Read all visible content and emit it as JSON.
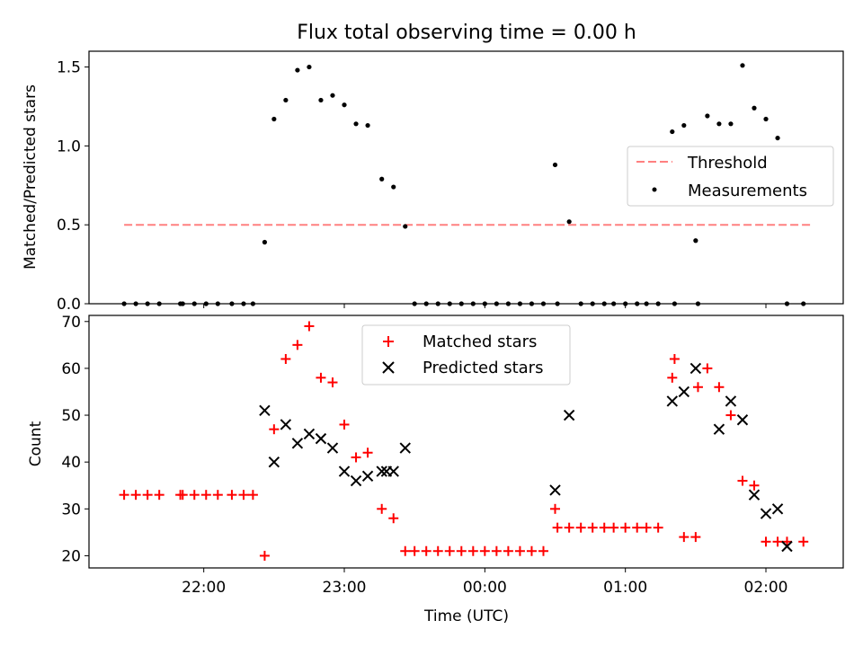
{
  "figure": {
    "title": "Flux total observing time = 0.00 h"
  },
  "chart_data": [
    {
      "type": "scatter",
      "panel": "top",
      "title": "Flux total observing time = 0.00 h",
      "xlabel": "",
      "ylabel": "Matched/Predicted stars",
      "xlim": [
        "21:11",
        "02:33"
      ],
      "ylim": [
        0,
        1.6
      ],
      "yticks": [
        0.0,
        0.5,
        1.0,
        1.5
      ],
      "ytick_labels": [
        "0.0",
        "0.5",
        "1.0",
        "1.5"
      ],
      "legend_position": "center-right",
      "series": [
        {
          "name": "Threshold",
          "kind": "line",
          "style": "dashed",
          "color": "#ff8080",
          "x": [
            "21:26",
            "02:19"
          ],
          "y": [
            0.5,
            0.5
          ]
        },
        {
          "name": "Measurements",
          "kind": "points",
          "color": "#000000",
          "x": [
            "21:26",
            "21:31",
            "21:36",
            "21:41",
            "21:50",
            "21:51",
            "21:56",
            "22:01",
            "22:06",
            "22:12",
            "22:17",
            "22:21",
            "22:26",
            "22:30",
            "22:35",
            "22:40",
            "22:45",
            "22:50",
            "22:55",
            "23:00",
            "23:05",
            "23:10",
            "23:16",
            "23:21",
            "23:26",
            "23:30",
            "23:35",
            "23:40",
            "23:45",
            "23:50",
            "23:55",
            "00:00",
            "00:05",
            "00:10",
            "00:15",
            "00:20",
            "00:25",
            "00:30",
            "00:31",
            "00:36",
            "00:41",
            "00:46",
            "00:51",
            "00:55",
            "01:00",
            "01:05",
            "01:09",
            "01:14",
            "01:20",
            "01:21",
            "01:25",
            "01:30",
            "01:31",
            "01:35",
            "01:40",
            "01:45",
            "01:50",
            "01:55",
            "02:00",
            "02:05",
            "02:09",
            "02:16"
          ],
          "y": [
            0,
            0,
            0,
            0,
            0,
            0,
            0,
            0,
            0,
            0,
            0,
            0,
            0.39,
            1.17,
            1.29,
            1.48,
            1.5,
            1.29,
            1.32,
            1.26,
            1.14,
            1.13,
            0.79,
            0.74,
            0.49,
            0,
            0,
            0,
            0,
            0,
            0,
            0,
            0,
            0,
            0,
            0,
            0,
            0.88,
            0,
            0.52,
            0,
            0,
            0,
            0,
            0,
            0,
            0,
            0,
            1.09,
            0,
            1.13,
            0.4,
            0,
            1.19,
            1.14,
            1.14,
            1.51,
            1.24,
            1.17,
            1.05,
            0,
            0
          ]
        }
      ]
    },
    {
      "type": "scatter",
      "panel": "bottom",
      "xlabel": "Time (UTC)",
      "ylabel": "Count",
      "xlim": [
        "21:11",
        "02:33"
      ],
      "ylim": [
        17.4,
        71.3
      ],
      "xticks": [
        "22:00",
        "23:00",
        "00:00",
        "01:00",
        "02:00"
      ],
      "yticks": [
        20,
        30,
        40,
        50,
        60,
        70
      ],
      "ytick_labels": [
        "20",
        "30",
        "40",
        "50",
        "60",
        "70"
      ],
      "legend_position": "top-center",
      "series": [
        {
          "name": "Matched stars",
          "marker": "plus",
          "color": "#ff0000",
          "x": [
            "21:26",
            "21:31",
            "21:36",
            "21:41",
            "21:50",
            "21:51",
            "21:56",
            "22:01",
            "22:06",
            "22:12",
            "22:17",
            "22:21",
            "22:26",
            "22:30",
            "22:35",
            "22:40",
            "22:45",
            "22:50",
            "22:55",
            "23:00",
            "23:05",
            "23:10",
            "23:16",
            "23:21",
            "23:26",
            "23:30",
            "23:35",
            "23:40",
            "23:45",
            "23:50",
            "23:55",
            "00:00",
            "00:05",
            "00:10",
            "00:15",
            "00:20",
            "00:25",
            "00:30",
            "00:31",
            "00:36",
            "00:41",
            "00:46",
            "00:51",
            "00:55",
            "01:00",
            "01:05",
            "01:09",
            "01:14",
            "01:20",
            "01:21",
            "01:25",
            "01:30",
            "01:31",
            "01:35",
            "01:40",
            "01:45",
            "01:50",
            "01:55",
            "02:00",
            "02:05",
            "02:09",
            "02:16"
          ],
          "y": [
            33,
            33,
            33,
            33,
            33,
            33,
            33,
            33,
            33,
            33,
            33,
            33,
            20,
            47,
            62,
            65,
            69,
            58,
            57,
            48,
            41,
            42,
            30,
            28,
            21,
            21,
            21,
            21,
            21,
            21,
            21,
            21,
            21,
            21,
            21,
            21,
            21,
            30,
            26,
            26,
            26,
            26,
            26,
            26,
            26,
            26,
            26,
            26,
            58,
            62,
            24,
            24,
            56,
            60,
            56,
            50,
            36,
            35,
            23,
            23,
            23,
            23
          ]
        },
        {
          "name": "Predicted stars",
          "marker": "x",
          "color": "#000000",
          "x": [
            "22:26",
            "22:30",
            "22:35",
            "22:40",
            "22:45",
            "22:50",
            "22:55",
            "23:00",
            "23:05",
            "23:10",
            "23:16",
            "23:18",
            "23:21",
            "23:26",
            "00:30",
            "00:36",
            "01:20",
            "01:25",
            "01:30",
            "01:40",
            "01:45",
            "01:50",
            "01:55",
            "02:00",
            "02:05",
            "02:09"
          ],
          "y": [
            51,
            40,
            48,
            44,
            46,
            45,
            43,
            38,
            36,
            37,
            38,
            38,
            38,
            43,
            34,
            50,
            53,
            55,
            60,
            47,
            53,
            49,
            33,
            29,
            30,
            22
          ]
        }
      ]
    }
  ]
}
